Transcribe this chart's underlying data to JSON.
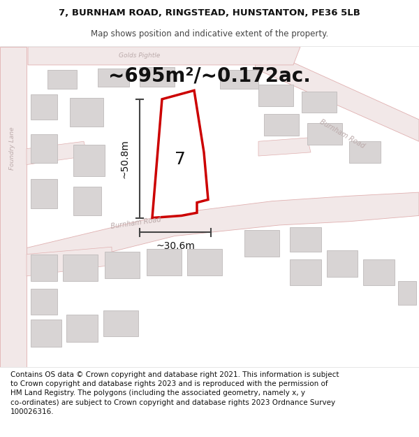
{
  "title_line1": "7, BURNHAM ROAD, RINGSTEAD, HUNSTANTON, PE36 5LB",
  "title_line2": "Map shows position and indicative extent of the property.",
  "area_text": "~695m²/~0.172ac.",
  "width_label": "~30.6m",
  "height_label": "~50.8m",
  "plot_number": "7",
  "footer_text": "Contains OS data © Crown copyright and database right 2021. This information is subject to Crown copyright and database rights 2023 and is reproduced with the permission of HM Land Registry. The polygons (including the associated geometry, namely x, y co-ordinates) are subject to Crown copyright and database rights 2023 Ordnance Survey 100026316.",
  "title_fontsize": 9.5,
  "subtitle_fontsize": 8.5,
  "area_fontsize": 20,
  "plot_num_fontsize": 18,
  "dim_label_fontsize": 10,
  "footer_fontsize": 7.5,
  "road_label_fontsize": 7.0,
  "map_bg": "#fefefe",
  "road_fill": "#f2e8e8",
  "road_stroke": "#e0b0b0",
  "building_fill": "#d8d4d4",
  "building_stroke": "#c4c0c0",
  "property_fill": "#ffffff",
  "property_stroke": "#cc0000",
  "dim_color": "#444444",
  "road_label_color": "#bbaaaa",
  "text_color": "#111111",
  "footer_bg": "#ffffff",
  "title_bg": "#ffffff"
}
